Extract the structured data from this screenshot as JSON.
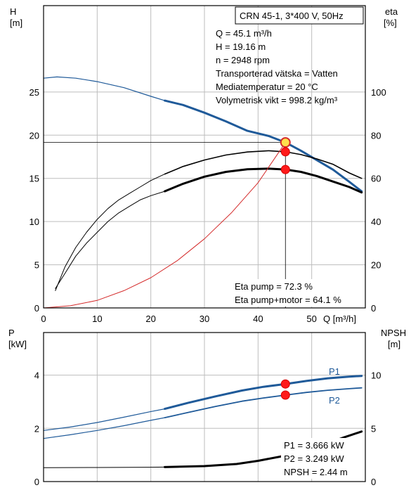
{
  "chart_data": [
    {
      "type": "line",
      "title": "CRN 45-1, 3*400 V, 50Hz",
      "ylabel_left": "H",
      "ylabel_left_unit": "[m]",
      "ylabel_right": "eta",
      "ylabel_right_unit": "[%]",
      "xlabel": "Q [m³/h]",
      "xlim": [
        0,
        60
      ],
      "ylim_left": [
        0,
        35
      ],
      "ylim_right": [
        0,
        140
      ],
      "x_ticks": [
        "0",
        "10",
        "20",
        "30",
        "40",
        "50"
      ],
      "x_tick_values": [
        0,
        10,
        20,
        30,
        40,
        50
      ],
      "y_left_ticks": [
        "0",
        "5",
        "10",
        "15",
        "20",
        "25"
      ],
      "y_left_tick_values": [
        0,
        5,
        10,
        15,
        20,
        25
      ],
      "y_right_ticks": [
        "0",
        "20",
        "40",
        "60",
        "80",
        "100"
      ],
      "y_right_tick_values": [
        0,
        20,
        40,
        60,
        80,
        100
      ],
      "grid": true,
      "info_lines": [
        "Q = 45.1 m³/h",
        "H = 19.16 m",
        "n = 2948 rpm",
        "Transporterad vätska = Vatten",
        "Mediatemperatur = 20 °C",
        "Volymetrisk vikt = 998.2 kg/m³"
      ],
      "annotations": [
        "Eta pump = 72.3 %",
        "Eta pump+motor = 64.1 %"
      ],
      "operating_point": {
        "q": 45.1,
        "h": 19.16,
        "eta_pump": 72.3,
        "eta_total": 64.1
      },
      "series": [
        {
          "axis": "left",
          "role": "head-curve-thin",
          "color": "#1f5a99",
          "width": 1.2,
          "x": [
            0,
            2.5,
            6,
            10,
            15,
            20,
            22.6
          ],
          "y": [
            26.6,
            26.75,
            26.6,
            26.2,
            25.5,
            24.5,
            24.0
          ]
        },
        {
          "axis": "left",
          "role": "head-curve-thick",
          "color": "#1f5a99",
          "width": 3,
          "x": [
            22.6,
            26,
            30,
            34,
            38,
            42,
            45.1,
            48,
            51,
            54,
            57,
            59.3
          ],
          "y": [
            24.0,
            23.5,
            22.6,
            21.6,
            20.5,
            19.9,
            19.16,
            18.2,
            17.1,
            16.0,
            14.6,
            13.5
          ]
        },
        {
          "axis": "right",
          "role": "eta-pump-thin",
          "color": "#000000",
          "width": 1,
          "x": [
            2.2,
            4,
            6,
            8,
            10,
            12,
            14,
            16,
            18,
            20,
            22.6
          ],
          "y": [
            8,
            19,
            28,
            35,
            41,
            46,
            50,
            53,
            56,
            59,
            62
          ]
        },
        {
          "axis": "right",
          "role": "eta-pump-medium",
          "color": "#000000",
          "width": 1.6,
          "x": [
            22.6,
            26,
            30,
            34,
            38,
            42,
            45.1,
            48,
            51,
            54,
            57,
            59.3
          ],
          "y": [
            62,
            65.5,
            68.5,
            70.8,
            72.2,
            72.8,
            72.3,
            71,
            69,
            66.5,
            62.5,
            60
          ]
        },
        {
          "axis": "right",
          "role": "eta-total-thin",
          "color": "#000000",
          "width": 1,
          "x": [
            2.2,
            4,
            6,
            8,
            10,
            12,
            14,
            16,
            18,
            20,
            22.6
          ],
          "y": [
            9,
            16,
            24,
            30,
            35,
            40,
            44,
            47,
            50,
            52,
            54
          ]
        },
        {
          "axis": "right",
          "role": "eta-total-thick",
          "color": "#000000",
          "width": 3,
          "x": [
            22.6,
            26,
            30,
            34,
            38,
            42,
            45.1,
            48,
            51,
            54,
            57,
            59.3
          ],
          "y": [
            54,
            57.5,
            60.8,
            63,
            64.2,
            64.5,
            64.1,
            63,
            61,
            58.5,
            56,
            53.5
          ]
        },
        {
          "axis": "right",
          "role": "system-curve",
          "color": "#d42a2a",
          "width": 1,
          "x": [
            0,
            5,
            10,
            15,
            20,
            25,
            30,
            35,
            40,
            45.1
          ],
          "y": [
            0,
            1,
            3.5,
            8,
            14,
            22,
            32,
            44,
            58,
            76.6
          ]
        }
      ],
      "markers": [
        {
          "axis": "left",
          "x": 45.1,
          "y": 19.16,
          "style": "ring"
        },
        {
          "axis": "right",
          "x": 45.1,
          "y": 72.3,
          "style": "dot"
        },
        {
          "axis": "right",
          "x": 45.1,
          "y": 64.1,
          "style": "dot"
        }
      ]
    },
    {
      "type": "line",
      "ylabel_left": "P",
      "ylabel_left_unit": "[kW]",
      "ylabel_right": "NPSH",
      "ylabel_right_unit": "[m]",
      "xlim": [
        0,
        60
      ],
      "ylim_left": [
        0,
        5.6
      ],
      "ylim_right": [
        0,
        14
      ],
      "y_left_ticks": [
        "0",
        "2",
        "4"
      ],
      "y_left_tick_values": [
        0,
        2,
        4
      ],
      "y_right_ticks": [
        "0",
        "5",
        "10"
      ],
      "y_right_tick_values": [
        0,
        5,
        10
      ],
      "grid": true,
      "info_lines": [
        "P1 = 3.666 kW",
        "P2 = 3.249 kW",
        "NPSH = 2.44 m"
      ],
      "series_labels": [
        "P1",
        "P2"
      ],
      "series": [
        {
          "axis": "left",
          "name": "P1",
          "role": "p1-thin",
          "color": "#1f5a99",
          "width": 1.2,
          "x": [
            0,
            5,
            10,
            15,
            20,
            22.6
          ],
          "y": [
            1.92,
            2.05,
            2.22,
            2.42,
            2.63,
            2.73
          ]
        },
        {
          "axis": "left",
          "name": "P1",
          "role": "p1-thick",
          "color": "#1f5a99",
          "width": 3,
          "x": [
            22.6,
            27,
            32,
            37,
            41,
            45.1,
            49,
            53,
            57,
            59.3
          ],
          "y": [
            2.73,
            2.96,
            3.2,
            3.42,
            3.56,
            3.666,
            3.78,
            3.88,
            3.94,
            3.97
          ]
        },
        {
          "axis": "left",
          "name": "P2",
          "role": "p2-thin",
          "color": "#1f5a99",
          "width": 1.2,
          "x": [
            0,
            5,
            10,
            15,
            20,
            22.6
          ],
          "y": [
            1.62,
            1.76,
            1.92,
            2.1,
            2.3,
            2.4
          ]
        },
        {
          "axis": "left",
          "name": "P2",
          "role": "p2-medium",
          "color": "#1f5a99",
          "width": 1.8,
          "x": [
            22.6,
            27,
            32,
            37,
            41,
            45.1,
            49,
            53,
            57,
            59.3
          ],
          "y": [
            2.4,
            2.6,
            2.82,
            3.02,
            3.14,
            3.249,
            3.35,
            3.43,
            3.49,
            3.52
          ]
        },
        {
          "axis": "right",
          "name": "NPSH",
          "role": "npsh-thin",
          "color": "#000000",
          "width": 1,
          "x": [
            0,
            10,
            20,
            22.6
          ],
          "y": [
            1.3,
            1.32,
            1.35,
            1.36
          ]
        },
        {
          "axis": "right",
          "name": "NPSH",
          "role": "npsh-thick",
          "color": "#000000",
          "width": 3,
          "x": [
            22.6,
            30,
            36,
            40,
            45.1,
            49,
            53,
            56,
            59.3
          ],
          "y": [
            1.36,
            1.45,
            1.65,
            1.95,
            2.44,
            2.95,
            3.6,
            4.15,
            4.7
          ]
        }
      ],
      "markers": [
        {
          "axis": "left",
          "x": 45.1,
          "y": 3.666,
          "style": "dot"
        },
        {
          "axis": "left",
          "x": 45.1,
          "y": 3.249,
          "style": "dot"
        },
        {
          "axis": "right",
          "x": 45.1,
          "y": 2.44,
          "style": "dot"
        }
      ]
    }
  ]
}
